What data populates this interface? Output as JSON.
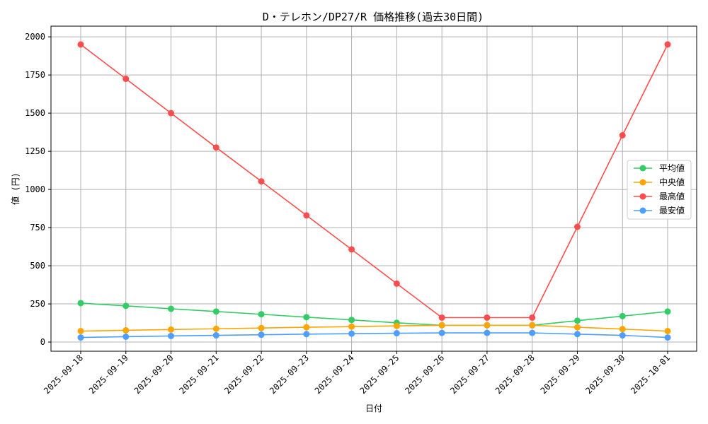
{
  "chart_data": {
    "type": "line",
    "title": "D・テレホン/DP27/R 価格推移(過去30日間)",
    "xlabel": "日付",
    "ylabel": "値 (円)",
    "ylim": [
      -60,
      2070
    ],
    "yticks": [
      0,
      250,
      500,
      750,
      1000,
      1250,
      1500,
      1750,
      2000
    ],
    "grid": true,
    "legend_position": "center-right",
    "categories": [
      "2025-09-18",
      "2025-09-19",
      "2025-09-20",
      "2025-09-21",
      "2025-09-22",
      "2025-09-23",
      "2025-09-24",
      "2025-09-25",
      "2025-09-26",
      "2025-09-27",
      "2025-09-28",
      "2025-09-29",
      "2025-09-30",
      "2025-10-01"
    ],
    "series": [
      {
        "name": "平均値",
        "color": "#33cc66",
        "values": [
          255,
          237,
          218,
          200,
          182,
          163,
          145,
          126,
          110,
          110,
          110,
          140,
          170,
          200
        ]
      },
      {
        "name": "中央値",
        "color": "#ffa500",
        "values": [
          72,
          77,
          82,
          87,
          92,
          97,
          101,
          106,
          110,
          110,
          110,
          97,
          85,
          72
        ]
      },
      {
        "name": "最高値",
        "color": "#ff4d4d",
        "values": [
          1950,
          1725,
          1500,
          1275,
          1053,
          830,
          607,
          383,
          160,
          160,
          160,
          755,
          1355,
          1950
        ]
      },
      {
        "name": "最安値",
        "color": "#4d9eff",
        "values": [
          30,
          35,
          40,
          44,
          48,
          52,
          55,
          58,
          60,
          60,
          60,
          52,
          44,
          30
        ]
      }
    ]
  }
}
